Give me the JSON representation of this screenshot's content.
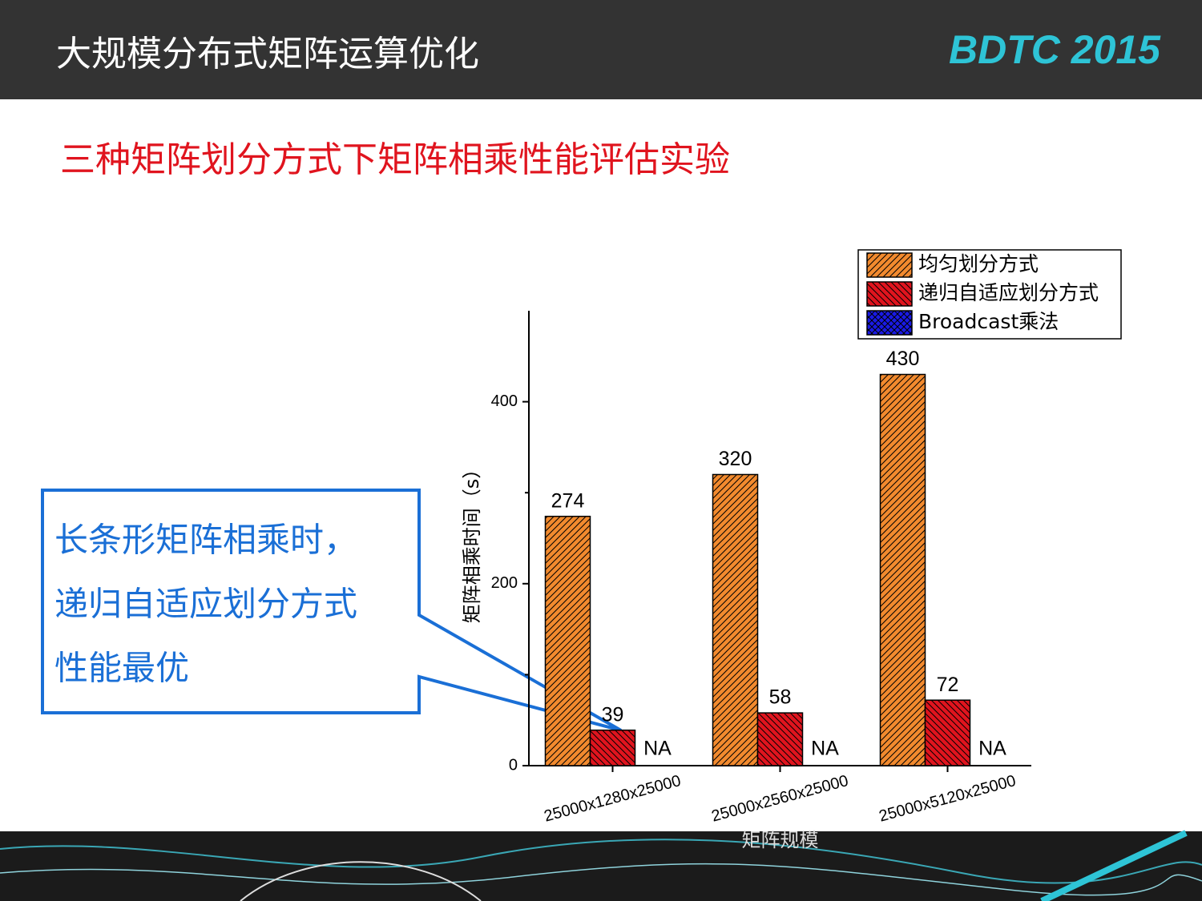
{
  "header": {
    "title": "大规模分布式矩阵运算优化",
    "logo": "BDTC 2015",
    "subtitle": "三种矩阵划分方式下矩阵相乘性能评估实验"
  },
  "callout": {
    "lines": [
      "长条形矩阵相乘时，",
      "递归自适应划分方式",
      "性能最优"
    ]
  },
  "chart_data": {
    "type": "bar",
    "x_label": "矩阵规模",
    "y_label": "矩阵相乘时间（s）",
    "categories": [
      "25000x1280x25000",
      "25000x2560x25000",
      "25000x5120x25000"
    ],
    "series": [
      {
        "name": "均匀划分方式",
        "color": "#f28a2e",
        "hatch": "forward",
        "values": [
          274,
          320,
          430
        ]
      },
      {
        "name": "递归自适应划分方式",
        "color": "#e0141e",
        "hatch": "backward",
        "values": [
          39,
          58,
          72
        ]
      },
      {
        "name": "Broadcast乘法",
        "color": "#1a1ae6",
        "hatch": "cross",
        "values": [
          null,
          null,
          null
        ],
        "value_labels": [
          "NA",
          "NA",
          "NA"
        ]
      }
    ],
    "ylim": [
      0,
      500
    ],
    "yticks": [
      0,
      200,
      400
    ],
    "minor_yticks": [
      100,
      300
    ],
    "grid": false,
    "legend": "top-right"
  }
}
